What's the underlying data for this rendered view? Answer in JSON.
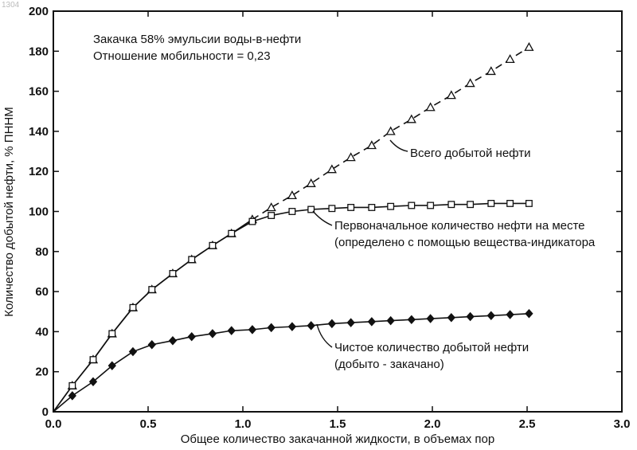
{
  "corner_mark": "1304",
  "chart_data": {
    "type": "line",
    "xlabel": "Общее количество закачанной жидкости, в объемах пор",
    "ylabel": "Количество добытой нефти, % ПННМ",
    "xlim": [
      0,
      3
    ],
    "ylim": [
      0,
      200
    ],
    "xticks": [
      "0.0",
      "0.5",
      "1.0",
      "1.5",
      "2.0",
      "2.5",
      "3.0"
    ],
    "yticks": [
      "0",
      "20",
      "40",
      "60",
      "80",
      "100",
      "120",
      "140",
      "160",
      "180",
      "200"
    ],
    "grid": false,
    "annotations": [
      "Закачка 58% эмульсии воды-в-нефти",
      "Отношение мобильности = 0,23"
    ],
    "series": [
      {
        "name": "Всего добытой нефти",
        "marker": "triangle-open",
        "x": [
          0,
          0.1,
          0.21,
          0.31,
          0.42,
          0.52,
          0.63,
          0.73,
          0.84,
          0.94,
          1.05,
          1.15,
          1.26,
          1.36,
          1.47,
          1.57,
          1.68,
          1.78,
          1.89,
          1.99,
          2.1,
          2.2,
          2.31,
          2.41,
          2.51
        ],
        "values": [
          0,
          13,
          26,
          39,
          52,
          61,
          69,
          76,
          83,
          89,
          96,
          102,
          108,
          114,
          121,
          127,
          133,
          140,
          146,
          152,
          158,
          164,
          170,
          176,
          182
        ]
      },
      {
        "name": "Первоначальное количество нефти на месте (определено с помощью вещества-индикатора",
        "marker": "square-open",
        "x": [
          0,
          0.1,
          0.21,
          0.31,
          0.42,
          0.52,
          0.63,
          0.73,
          0.84,
          0.94,
          1.05,
          1.15,
          1.26,
          1.36,
          1.47,
          1.57,
          1.68,
          1.78,
          1.89,
          1.99,
          2.1,
          2.2,
          2.31,
          2.41,
          2.51
        ],
        "values": [
          0,
          13,
          26,
          39,
          52,
          61,
          69,
          76,
          83,
          89,
          95,
          98,
          100,
          101,
          101.5,
          102,
          102,
          102.5,
          103,
          103,
          103.5,
          103.5,
          104,
          104,
          104
        ]
      },
      {
        "name": "Чистое количество добытой нефти (добыто - закачано)",
        "marker": "diamond-filled",
        "x": [
          0,
          0.1,
          0.21,
          0.31,
          0.42,
          0.52,
          0.63,
          0.73,
          0.84,
          0.94,
          1.05,
          1.15,
          1.26,
          1.36,
          1.47,
          1.57,
          1.68,
          1.78,
          1.89,
          1.99,
          2.1,
          2.2,
          2.31,
          2.41,
          2.51
        ],
        "values": [
          0,
          8,
          15,
          23,
          30,
          33.5,
          35.5,
          37.5,
          39,
          40.5,
          41,
          42,
          42.5,
          43,
          44,
          44.5,
          45,
          45.5,
          46,
          46.5,
          47,
          47.5,
          48,
          48.5,
          49
        ]
      }
    ],
    "labels": [
      {
        "series": 0,
        "lines": [
          "Всего добытой нефти"
        ]
      },
      {
        "series": 1,
        "lines": [
          "Первоначальное количество нефти на месте",
          "(определено с помощью вещества-индикатора"
        ]
      },
      {
        "series": 2,
        "lines": [
          "Чистое количество добытой нефти",
          "(добыто - закачано)"
        ]
      }
    ]
  }
}
